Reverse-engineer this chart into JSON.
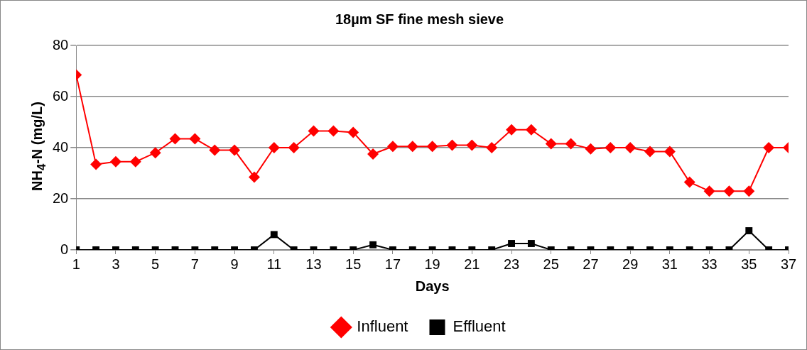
{
  "chart_data": {
    "type": "line",
    "title": "18µm SF fine mesh sieve",
    "xlabel": "Days",
    "ylabel": "NH$_{4}$-N  (mg/L)",
    "x": [
      1,
      2,
      3,
      4,
      5,
      6,
      7,
      8,
      9,
      10,
      11,
      12,
      13,
      14,
      15,
      16,
      17,
      18,
      19,
      20,
      21,
      22,
      23,
      24,
      25,
      26,
      27,
      28,
      29,
      30,
      31,
      32,
      33,
      34,
      35,
      36,
      37
    ],
    "xlim": [
      1,
      37
    ],
    "xticks": [
      1,
      3,
      5,
      7,
      9,
      11,
      13,
      15,
      17,
      19,
      21,
      23,
      25,
      27,
      29,
      31,
      33,
      35,
      37
    ],
    "ylim": [
      0,
      80
    ],
    "yticks": [
      0,
      20,
      40,
      60,
      80
    ],
    "grid": "y",
    "legend": "bottom",
    "line_style": "solid",
    "series": [
      {
        "name": "Influent",
        "color": "#ff0000",
        "marker": "diamond",
        "values": [
          68.5,
          33.5,
          34.5,
          34.5,
          38,
          43.5,
          43.5,
          39,
          39,
          28.5,
          40,
          40,
          46.5,
          46.5,
          46,
          37.5,
          40.5,
          40.5,
          40.5,
          41,
          41,
          40,
          47,
          47,
          41.5,
          41.5,
          39.5,
          40,
          40,
          38.5,
          38.5,
          26.5,
          23,
          23,
          23,
          40,
          40
        ]
      },
      {
        "name": "Effluent",
        "color": "#000000",
        "marker": "square",
        "values": [
          0,
          0,
          0,
          0,
          0,
          0,
          0,
          0,
          0,
          0,
          6,
          0,
          0,
          0,
          0,
          2,
          0,
          0,
          0,
          0,
          0,
          0,
          2.5,
          2.5,
          0,
          0,
          0,
          0,
          0,
          0,
          0,
          0,
          0,
          0,
          7.5,
          0,
          0
        ]
      }
    ]
  }
}
